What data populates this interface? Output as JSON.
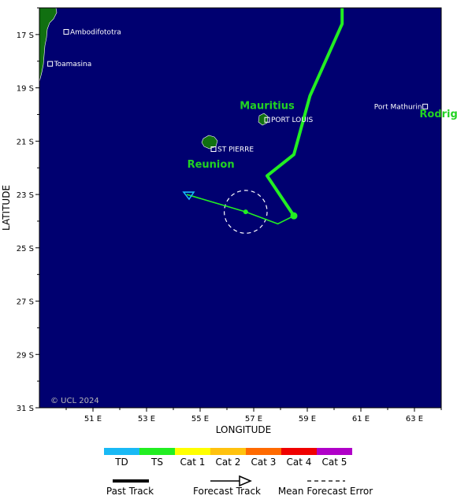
{
  "map": {
    "x_axis_title": "LONGITUDE",
    "y_axis_title": "LATITUDE",
    "lon_ticks": [
      {
        "value": 51,
        "label": "51 E"
      },
      {
        "value": 53,
        "label": "53 E"
      },
      {
        "value": 55,
        "label": "55 E"
      },
      {
        "value": 57,
        "label": "57 E"
      },
      {
        "value": 59,
        "label": "59 E"
      },
      {
        "value": 61,
        "label": "61 E"
      },
      {
        "value": 63,
        "label": "63 E"
      }
    ],
    "lat_ticks": [
      {
        "value": 17,
        "label": "17 S"
      },
      {
        "value": 19,
        "label": "19 S"
      },
      {
        "value": 21,
        "label": "21 S"
      },
      {
        "value": 23,
        "label": "23 S"
      },
      {
        "value": 25,
        "label": "25 S"
      },
      {
        "value": 27,
        "label": "27 S"
      },
      {
        "value": 29,
        "label": "29 S"
      },
      {
        "value": 31,
        "label": "31 S"
      }
    ],
    "places": [
      {
        "name": "Ambodifototra",
        "lon": 50.0,
        "lat": 16.9
      },
      {
        "name": "Toamasina",
        "lon": 49.4,
        "lat": 18.1
      },
      {
        "name": "PORT LOUIS",
        "lon": 57.5,
        "lat": 20.2
      },
      {
        "name": "Port Mathurin",
        "lon": 63.4,
        "lat": 19.7
      },
      {
        "name": "ST PIERRE",
        "lon": 55.5,
        "lat": 21.3
      }
    ],
    "island_labels": [
      {
        "name": "Mauritius",
        "lon": 57.5,
        "lat": 19.8
      },
      {
        "name": "Reunion",
        "lon": 55.4,
        "lat": 22.0
      },
      {
        "name": "Rodrig",
        "lon": 63.9,
        "lat": 20.1
      }
    ],
    "past_track": [
      [
        60.3,
        16.0
      ],
      [
        60.3,
        16.6
      ],
      [
        59.1,
        19.3
      ],
      [
        58.5,
        21.5
      ],
      [
        57.5,
        22.3
      ],
      [
        58.5,
        23.8
      ]
    ],
    "current_position": [
      58.5,
      23.8
    ],
    "forecast_track": [
      [
        58.5,
        23.8
      ],
      [
        57.9,
        24.1
      ],
      [
        56.7,
        23.65
      ],
      [
        54.5,
        23.0
      ]
    ],
    "forecast_point": [
      56.7,
      23.65
    ],
    "forecast_end": [
      54.5,
      23.0
    ],
    "error_circle": {
      "center": [
        56.7,
        23.65
      ],
      "radius_deg": 0.8
    },
    "credit": "© UCL 2024",
    "colors": {
      "ocean": "#000070",
      "land": "#117011",
      "track": "#22ee22",
      "forecast_tip": "#19b9f5"
    }
  },
  "legend": {
    "categories": [
      {
        "label": "TD",
        "color": "#19b9f5"
      },
      {
        "label": "TS",
        "color": "#22ee22"
      },
      {
        "label": "Cat 1",
        "color": "#ffff00"
      },
      {
        "label": "Cat 2",
        "color": "#ffc20e"
      },
      {
        "label": "Cat 3",
        "color": "#ff6a00"
      },
      {
        "label": "Cat 4",
        "color": "#f00000"
      },
      {
        "label": "Cat 5",
        "color": "#b000c8"
      }
    ],
    "past_track_label": "Past Track",
    "forecast_track_label": "Forecast Track",
    "error_label": "Mean Forecast Error"
  }
}
